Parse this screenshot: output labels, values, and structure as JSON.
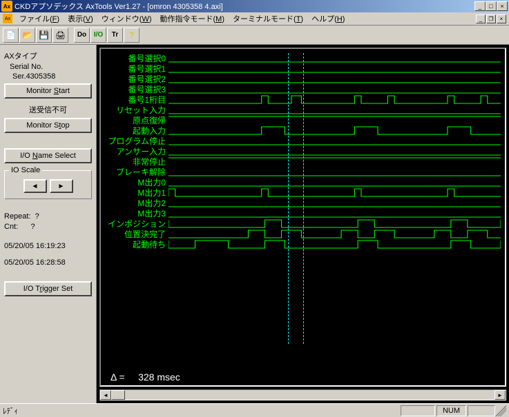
{
  "window": {
    "title": "CKDアプソデックス AxTools Ver1.27 - [omron 4305358 4.axi]",
    "minimize": "_",
    "maximize": "□",
    "close": "×"
  },
  "menu": {
    "items": [
      {
        "label": "ファイル",
        "key": "F"
      },
      {
        "label": "表示",
        "key": "V"
      },
      {
        "label": "ウィンドウ",
        "key": "W"
      },
      {
        "label": "動作指令モード",
        "key": "M"
      },
      {
        "label": "ターミナルモード",
        "key": "T"
      },
      {
        "label": "ヘルプ",
        "key": "H"
      }
    ]
  },
  "toolbar": {
    "buttons": [
      {
        "icon": "📄",
        "name": "new"
      },
      {
        "icon": "📂",
        "name": "open"
      },
      {
        "icon": "💾",
        "name": "save"
      },
      {
        "icon": "🖨",
        "name": "print"
      },
      {
        "sep": true
      },
      {
        "txt": "Do",
        "name": "do"
      },
      {
        "txt": "I/O",
        "name": "io",
        "color": "#008000"
      },
      {
        "txt": "Tr",
        "name": "tr"
      },
      {
        "icon": "?",
        "name": "help",
        "color": "#cccc00"
      }
    ]
  },
  "sidebar": {
    "axtype": "AXタイプ",
    "serial_lbl": "Serial No.",
    "serial_val": "Ser.4305358",
    "monitor_start": "Monitor Start",
    "send_recv": "送受信不可",
    "monitor_stop": "Monitor Stop",
    "io_name_select": "I/O Name Select",
    "io_scale": "IO Scale",
    "arrow_left": "◄",
    "arrow_right": "►",
    "repeat_lbl": "Repeat:",
    "repeat_val": "?",
    "cnt_lbl": "Cnt:",
    "cnt_val": "?",
    "timestamp1": "05/20/05 16:19:23",
    "timestamp2": "05/20/05 16:28:58",
    "io_trigger_set": "I/O Trigger Set"
  },
  "signals": {
    "labels": [
      "番号選択0",
      "番号選択1",
      "番号選択2",
      "番号選択3",
      "番号1桁目",
      "リセット入力",
      "原点復帰",
      "起動入力",
      "プログラム停止",
      "アンサー入力",
      "非常停止",
      "ブレーキ解除",
      "M出力0",
      "M出力1",
      "M出力2",
      "M出力3",
      "インポジション",
      "位置決完了",
      "起動待ち"
    ],
    "waves": [
      {
        "type": "flat",
        "level": 0
      },
      {
        "type": "flat",
        "level": 0
      },
      {
        "type": "flat",
        "level": 0
      },
      {
        "type": "flat",
        "level": 0
      },
      {
        "type": "pulses",
        "edges": [
          [
            0.28,
            0.3
          ],
          [
            0.37,
            0.4
          ],
          [
            0.56,
            0.58
          ],
          [
            0.66,
            0.68
          ],
          [
            0.84,
            0.86
          ],
          [
            0.94,
            0.96
          ]
        ]
      },
      {
        "type": "flat",
        "level": 0
      },
      {
        "type": "flat",
        "level": 1
      },
      {
        "type": "pulses",
        "edges": [
          [
            0.28,
            0.35
          ],
          [
            0.56,
            0.63
          ],
          [
            0.84,
            0.91
          ]
        ]
      },
      {
        "type": "flat",
        "level": 0
      },
      {
        "type": "flat",
        "level": 0
      },
      {
        "type": "flat",
        "level": 1
      },
      {
        "type": "flat",
        "level": 0
      },
      {
        "type": "flat",
        "level": 0
      },
      {
        "type": "pulses",
        "edges": [
          [
            0.0,
            0.02
          ],
          [
            0.28,
            0.3
          ],
          [
            0.56,
            0.58
          ],
          [
            0.84,
            0.86
          ]
        ]
      },
      {
        "type": "flat",
        "level": 0
      },
      {
        "type": "flat",
        "level": 0
      },
      {
        "type": "pulses",
        "edges": [
          [
            0.0,
            0.29
          ],
          [
            0.34,
            0.57
          ],
          [
            0.62,
            0.85
          ],
          [
            0.9,
            1.0
          ]
        ],
        "invert": true
      },
      {
        "type": "pulses",
        "edges": [
          [
            0.24,
            0.29
          ],
          [
            0.34,
            0.4
          ],
          [
            0.52,
            0.57
          ],
          [
            0.62,
            0.68
          ],
          [
            0.8,
            0.85
          ],
          [
            0.9,
            0.96
          ]
        ]
      },
      {
        "type": "pulses",
        "edges": [
          [
            0.0,
            0.08
          ],
          [
            0.18,
            0.29
          ],
          [
            0.35,
            0.57
          ],
          [
            0.63,
            0.85
          ],
          [
            0.91,
            1.0
          ]
        ],
        "invert": true
      }
    ],
    "cursors": [
      0.38,
      0.43
    ],
    "color": "#00ff00",
    "cursor_color": "#00ffff"
  },
  "delta": {
    "label": "Δ  =",
    "value": "328 msec"
  },
  "statusbar": {
    "ready": "ﾚﾃﾞｨ",
    "num": "NUM"
  }
}
